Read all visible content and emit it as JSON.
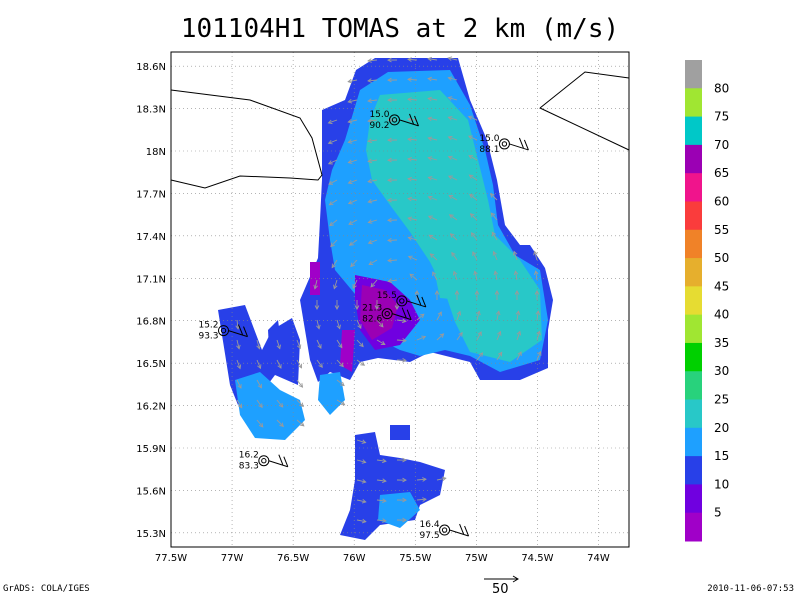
{
  "title": "101104H1 TOMAS at 2 km (m/s)",
  "footer": {
    "left": "GrADS: COLA/IGES",
    "right": "2010-11-06-07:53"
  },
  "reference_vector_label": "50",
  "axes": {
    "x_ticks": [
      "77.5W",
      "77W",
      "76.5W",
      "76W",
      "75.5W",
      "75W",
      "74.5W",
      "74W"
    ],
    "y_ticks": [
      "18.6N",
      "18.3N",
      "18N",
      "17.7N",
      "17.4N",
      "17.1N",
      "16.8N",
      "16.5N",
      "16.2N",
      "15.9N",
      "15.6N",
      "15.3N"
    ],
    "xlim": [
      -77.5,
      -73.75
    ],
    "ylim": [
      15.2,
      18.7
    ]
  },
  "colorbar": {
    "labels": [
      "5",
      "10",
      "15",
      "20",
      "25",
      "30",
      "35",
      "40",
      "45",
      "50",
      "55",
      "60",
      "65",
      "70",
      "75",
      "80"
    ],
    "colors": [
      "#a000c8",
      "#7000e0",
      "#2840e8",
      "#1ea0ff",
      "#28c8c8",
      "#28d27c",
      "#00d000",
      "#a0e632",
      "#e6dc32",
      "#e6af2d",
      "#f08228",
      "#fa3c3c",
      "#f0148c",
      "#9b00b4",
      "#00c8c8",
      "#a0e632",
      "#a0a0a0"
    ]
  },
  "stations": [
    {
      "lon": -75.67,
      "lat": 18.22,
      "top": "15.0",
      "bottom": "90.2"
    },
    {
      "lon": -74.77,
      "lat": 18.05,
      "top": "15.0",
      "bottom": "88.1"
    },
    {
      "lon": -75.61,
      "lat": 16.94,
      "top": "15.5",
      "bottom": ""
    },
    {
      "lon": -75.73,
      "lat": 16.85,
      "top": "21.3",
      "bottom": "82.6"
    },
    {
      "lon": -77.07,
      "lat": 16.73,
      "top": "15.2",
      "bottom": "93.3"
    },
    {
      "lon": -76.74,
      "lat": 15.81,
      "top": "16.2",
      "bottom": "83.3"
    },
    {
      "lon": -75.26,
      "lat": 15.32,
      "top": "16.4",
      "bottom": "97.5"
    }
  ]
}
